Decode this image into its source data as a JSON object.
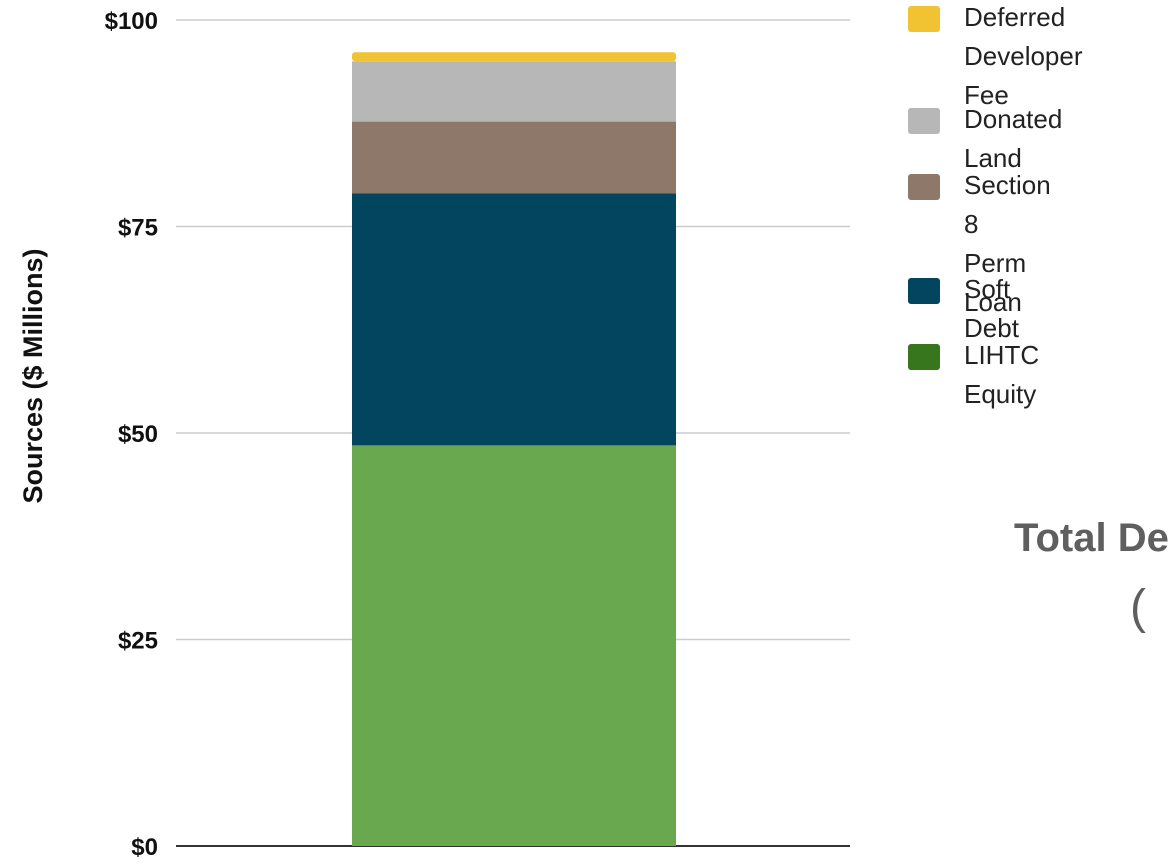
{
  "chart_data": {
    "type": "bar",
    "stacked": true,
    "ylabel": "Sources ($ Millions)",
    "ylim": [
      0,
      100
    ],
    "yticks": [
      {
        "value": 0,
        "label": "$0"
      },
      {
        "value": 25,
        "label": "$25"
      },
      {
        "value": 50,
        "label": "$50"
      },
      {
        "value": 75,
        "label": "$75"
      },
      {
        "value": 100,
        "label": "$100"
      }
    ],
    "grid": true,
    "legend_position": "right",
    "series": [
      {
        "name": "LIHTC Equity",
        "value": 48.5,
        "color": "#6aa84f",
        "legend_color": "#38761d"
      },
      {
        "name": "Soft Debt",
        "value": 30.5,
        "color": "#03445f",
        "legend_color": "#03445f"
      },
      {
        "name": "Section 8\nPerm Loan",
        "value": 8.7,
        "color": "#8e786a",
        "legend_color": "#8e786a"
      },
      {
        "name": "Donated Land",
        "value": 7.3,
        "color": "#b7b7b7",
        "legend_color": "#b7b7b7"
      },
      {
        "name": "Deferred\nDeveloper Fee",
        "value": 1.1,
        "color": "#f1c232",
        "legend_color": "#f1c232"
      }
    ],
    "annotation": {
      "text": "Total De",
      "paren": "("
    }
  }
}
